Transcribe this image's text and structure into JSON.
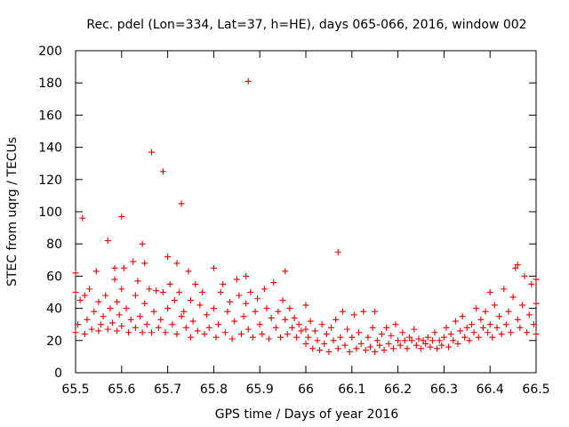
{
  "chart_data": {
    "type": "scatter",
    "title": "Rec. pdel (Lon=334, Lat=37, h=HE), days 065-066, 2016, window 002",
    "xlabel": "GPS time / Days of year 2016",
    "ylabel": "STEC from uqrg / TECUs",
    "xlim": [
      65.5,
      66.5
    ],
    "ylim": [
      0,
      200
    ],
    "x_ticks": [
      65.5,
      65.6,
      65.7,
      65.8,
      65.9,
      66.0,
      66.1,
      66.2,
      66.3,
      66.4,
      66.5
    ],
    "x_tick_labels": [
      "65.5",
      "65.6",
      "65.7",
      "65.8",
      "65.9",
      "66",
      "66.1",
      "66.2",
      "66.3",
      "66.4",
      "66.5"
    ],
    "y_ticks": [
      0,
      20,
      40,
      60,
      80,
      100,
      120,
      140,
      160,
      180,
      200
    ],
    "y_tick_labels": [
      "0",
      "20",
      "40",
      "60",
      "80",
      "100",
      "120",
      "140",
      "160",
      "180",
      "200"
    ],
    "grid": false,
    "legend": "none",
    "marker": "+",
    "color": "#e00000",
    "points": [
      [
        65.5,
        25
      ],
      [
        65.5,
        50
      ],
      [
        65.5,
        62
      ],
      [
        65.505,
        30
      ],
      [
        65.51,
        45
      ],
      [
        65.515,
        96
      ],
      [
        65.52,
        24
      ],
      [
        65.52,
        48
      ],
      [
        65.525,
        33
      ],
      [
        65.53,
        52
      ],
      [
        65.535,
        27
      ],
      [
        65.54,
        38
      ],
      [
        65.545,
        63
      ],
      [
        65.55,
        26
      ],
      [
        65.55,
        44
      ],
      [
        65.555,
        30
      ],
      [
        65.56,
        35
      ],
      [
        65.565,
        48
      ],
      [
        65.57,
        82
      ],
      [
        65.57,
        27
      ],
      [
        65.575,
        40
      ],
      [
        65.58,
        31
      ],
      [
        65.585,
        58
      ],
      [
        65.585,
        65
      ],
      [
        65.59,
        26
      ],
      [
        65.59,
        44
      ],
      [
        65.595,
        36
      ],
      [
        65.6,
        97
      ],
      [
        65.6,
        52
      ],
      [
        65.6,
        29
      ],
      [
        65.605,
        65
      ],
      [
        65.61,
        40
      ],
      [
        65.615,
        25
      ],
      [
        65.62,
        33
      ],
      [
        65.625,
        69
      ],
      [
        65.63,
        48
      ],
      [
        65.63,
        28
      ],
      [
        65.635,
        57
      ],
      [
        65.64,
        35
      ],
      [
        65.645,
        80
      ],
      [
        65.645,
        25
      ],
      [
        65.65,
        43
      ],
      [
        65.65,
        68
      ],
      [
        65.655,
        30
      ],
      [
        65.66,
        52
      ],
      [
        65.665,
        137
      ],
      [
        65.665,
        25
      ],
      [
        65.67,
        38
      ],
      [
        65.675,
        51
      ],
      [
        65.68,
        28
      ],
      [
        65.685,
        33
      ],
      [
        65.69,
        125
      ],
      [
        65.69,
        50
      ],
      [
        65.695,
        25
      ],
      [
        65.7,
        72
      ],
      [
        65.7,
        40
      ],
      [
        65.705,
        55
      ],
      [
        65.71,
        30
      ],
      [
        65.715,
        45
      ],
      [
        65.72,
        68
      ],
      [
        65.72,
        24
      ],
      [
        65.725,
        50
      ],
      [
        65.73,
        105
      ],
      [
        65.73,
        35
      ],
      [
        65.735,
        38
      ],
      [
        65.74,
        28
      ],
      [
        65.745,
        63
      ],
      [
        65.75,
        45
      ],
      [
        65.75,
        22
      ],
      [
        65.755,
        32
      ],
      [
        65.76,
        55
      ],
      [
        65.765,
        26
      ],
      [
        65.77,
        42
      ],
      [
        65.775,
        50
      ],
      [
        65.78,
        24
      ],
      [
        65.785,
        36
      ],
      [
        65.79,
        28
      ],
      [
        65.8,
        65
      ],
      [
        65.8,
        40
      ],
      [
        65.805,
        22
      ],
      [
        65.81,
        30
      ],
      [
        65.815,
        50
      ],
      [
        65.82,
        55
      ],
      [
        65.825,
        25
      ],
      [
        65.83,
        38
      ],
      [
        65.835,
        44
      ],
      [
        65.84,
        21
      ],
      [
        65.845,
        32
      ],
      [
        65.85,
        58
      ],
      [
        65.855,
        48
      ],
      [
        65.86,
        24
      ],
      [
        65.865,
        35
      ],
      [
        65.87,
        60
      ],
      [
        65.87,
        43
      ],
      [
        65.875,
        181
      ],
      [
        65.875,
        27
      ],
      [
        65.88,
        50
      ],
      [
        65.885,
        22
      ],
      [
        65.89,
        38
      ],
      [
        65.895,
        46
      ],
      [
        65.9,
        30
      ],
      [
        65.905,
        24
      ],
      [
        65.91,
        52
      ],
      [
        65.915,
        40
      ],
      [
        65.92,
        21
      ],
      [
        65.925,
        34
      ],
      [
        65.93,
        56
      ],
      [
        65.935,
        28
      ],
      [
        65.94,
        38
      ],
      [
        65.945,
        22
      ],
      [
        65.95,
        45
      ],
      [
        65.955,
        63
      ],
      [
        65.955,
        33
      ],
      [
        65.96,
        24
      ],
      [
        65.965,
        40
      ],
      [
        65.97,
        28
      ],
      [
        65.975,
        34
      ],
      [
        65.98,
        22
      ],
      [
        65.985,
        30
      ],
      [
        65.99,
        26
      ],
      [
        66.0,
        27
      ],
      [
        66.0,
        42
      ],
      [
        66.0,
        18
      ],
      [
        66.005,
        22
      ],
      [
        66.01,
        32
      ],
      [
        66.015,
        15
      ],
      [
        66.02,
        26
      ],
      [
        66.025,
        20
      ],
      [
        66.03,
        14
      ],
      [
        66.035,
        30
      ],
      [
        66.04,
        18
      ],
      [
        66.045,
        24
      ],
      [
        66.05,
        13
      ],
      [
        66.055,
        28
      ],
      [
        66.06,
        20
      ],
      [
        66.065,
        33
      ],
      [
        66.07,
        75
      ],
      [
        66.07,
        15
      ],
      [
        66.075,
        22
      ],
      [
        66.08,
        38
      ],
      [
        66.085,
        17
      ],
      [
        66.09,
        27
      ],
      [
        66.095,
        13
      ],
      [
        66.1,
        22
      ],
      [
        66.105,
        36
      ],
      [
        66.11,
        15
      ],
      [
        66.115,
        25
      ],
      [
        66.12,
        18
      ],
      [
        66.125,
        38
      ],
      [
        66.13,
        14
      ],
      [
        66.135,
        22
      ],
      [
        66.14,
        16
      ],
      [
        66.145,
        28
      ],
      [
        66.15,
        38
      ],
      [
        66.15,
        13
      ],
      [
        66.155,
        20
      ],
      [
        66.16,
        17
      ],
      [
        66.165,
        24
      ],
      [
        66.17,
        14
      ],
      [
        66.175,
        28
      ],
      [
        66.18,
        18
      ],
      [
        66.185,
        23
      ],
      [
        66.19,
        15
      ],
      [
        66.195,
        30
      ],
      [
        66.2,
        20
      ],
      [
        66.205,
        17
      ],
      [
        66.21,
        25
      ],
      [
        66.215,
        20
      ],
      [
        66.22,
        15
      ],
      [
        66.225,
        22
      ],
      [
        66.23,
        20
      ],
      [
        66.235,
        27
      ],
      [
        66.24,
        17
      ],
      [
        66.245,
        21
      ],
      [
        66.25,
        15
      ],
      [
        66.255,
        20
      ],
      [
        66.26,
        18
      ],
      [
        66.265,
        22
      ],
      [
        66.27,
        16
      ],
      [
        66.275,
        20
      ],
      [
        66.28,
        25
      ],
      [
        66.285,
        15
      ],
      [
        66.29,
        20
      ],
      [
        66.295,
        17
      ],
      [
        66.3,
        22
      ],
      [
        66.305,
        28
      ],
      [
        66.31,
        16
      ],
      [
        66.315,
        24
      ],
      [
        66.32,
        20
      ],
      [
        66.325,
        32
      ],
      [
        66.33,
        18
      ],
      [
        66.335,
        26
      ],
      [
        66.34,
        35
      ],
      [
        66.345,
        22
      ],
      [
        66.35,
        28
      ],
      [
        66.355,
        20
      ],
      [
        66.36,
        30
      ],
      [
        66.365,
        25
      ],
      [
        66.37,
        40
      ],
      [
        66.375,
        22
      ],
      [
        66.38,
        33
      ],
      [
        66.385,
        28
      ],
      [
        66.39,
        38
      ],
      [
        66.395,
        25
      ],
      [
        66.4,
        50
      ],
      [
        66.4,
        30
      ],
      [
        66.405,
        22
      ],
      [
        66.41,
        42
      ],
      [
        66.415,
        28
      ],
      [
        66.42,
        35
      ],
      [
        66.425,
        24
      ],
      [
        66.43,
        52
      ],
      [
        66.435,
        30
      ],
      [
        66.44,
        38
      ],
      [
        66.445,
        25
      ],
      [
        66.45,
        47
      ],
      [
        66.455,
        65
      ],
      [
        66.46,
        67
      ],
      [
        66.46,
        33
      ],
      [
        66.465,
        28
      ],
      [
        66.47,
        42
      ],
      [
        66.475,
        60
      ],
      [
        66.48,
        25
      ],
      [
        66.485,
        36
      ],
      [
        66.49,
        55
      ],
      [
        66.495,
        30
      ],
      [
        66.5,
        58
      ],
      [
        66.5,
        43
      ],
      [
        66.5,
        24
      ]
    ]
  }
}
